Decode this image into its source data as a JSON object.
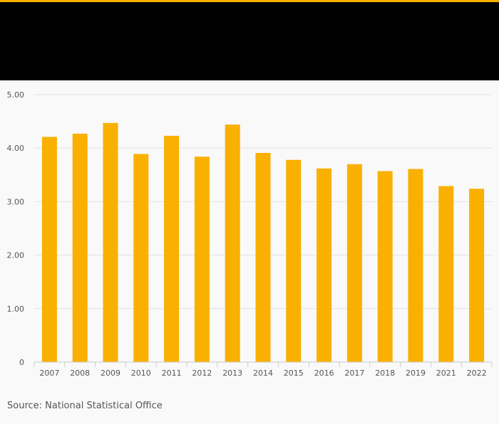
{
  "colors": {
    "accent": "#f9b000",
    "header_band": "#000000",
    "bar": "#f9b000",
    "gridline": "#e2e2e2",
    "axis": "#cccccc",
    "text": "#555555"
  },
  "source": "Source: National Statistical Office",
  "chart_data": {
    "type": "bar",
    "categories": [
      "2007",
      "2008",
      "2009",
      "2010",
      "2011",
      "2012",
      "2013",
      "2014",
      "2015",
      "2016",
      "2017",
      "2018",
      "2019",
      "2021",
      "2022"
    ],
    "values": [
      4.21,
      4.27,
      4.47,
      3.89,
      4.23,
      3.84,
      4.44,
      3.91,
      3.78,
      3.62,
      3.7,
      3.57,
      3.61,
      3.29,
      3.24
    ],
    "ylim": [
      0,
      5
    ],
    "yticks": [
      0,
      1,
      2,
      3,
      4,
      5
    ],
    "ytick_labels": [
      "0",
      "1.00",
      "2.00",
      "3.00",
      "4.00",
      "5.00"
    ],
    "grid": true,
    "legend": "none"
  }
}
